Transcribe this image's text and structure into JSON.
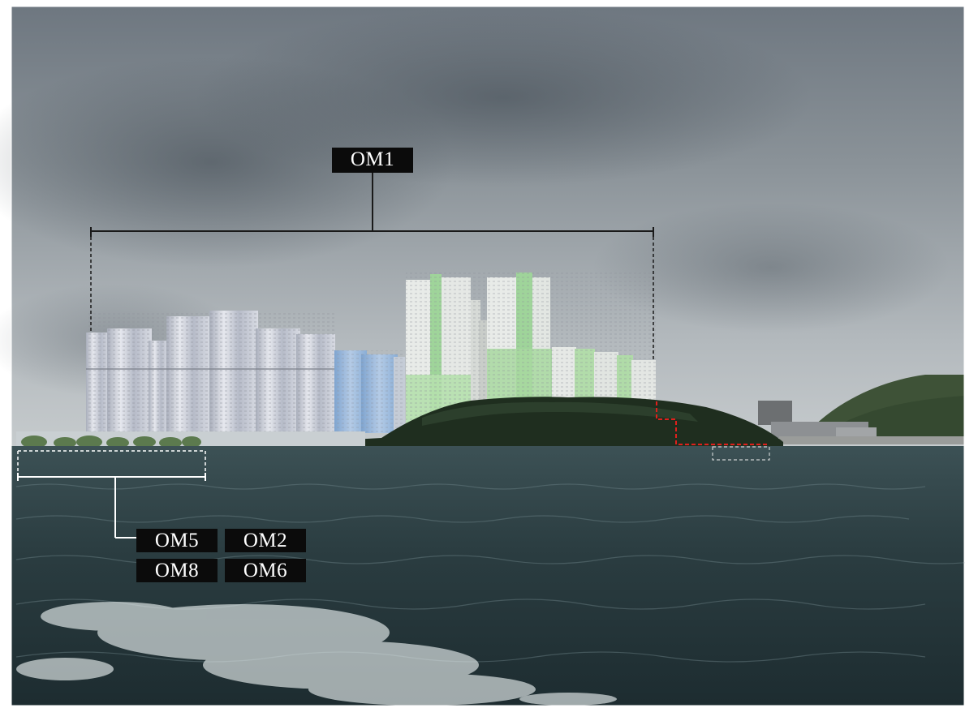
{
  "labels": {
    "om1": "OM1",
    "om5": "OM5",
    "om2": "OM2",
    "om8": "OM8",
    "om6": "OM6"
  },
  "colors": {
    "annotation_dark": "#1a1a1a",
    "annotation_light": "#ffffff",
    "boundary_dashed": "#e0201c",
    "proposed_tower_green": "#a8d8a0",
    "proposed_tower_blue": "#9cbde0",
    "proposed_tower_grey": "#c9ccd4"
  }
}
